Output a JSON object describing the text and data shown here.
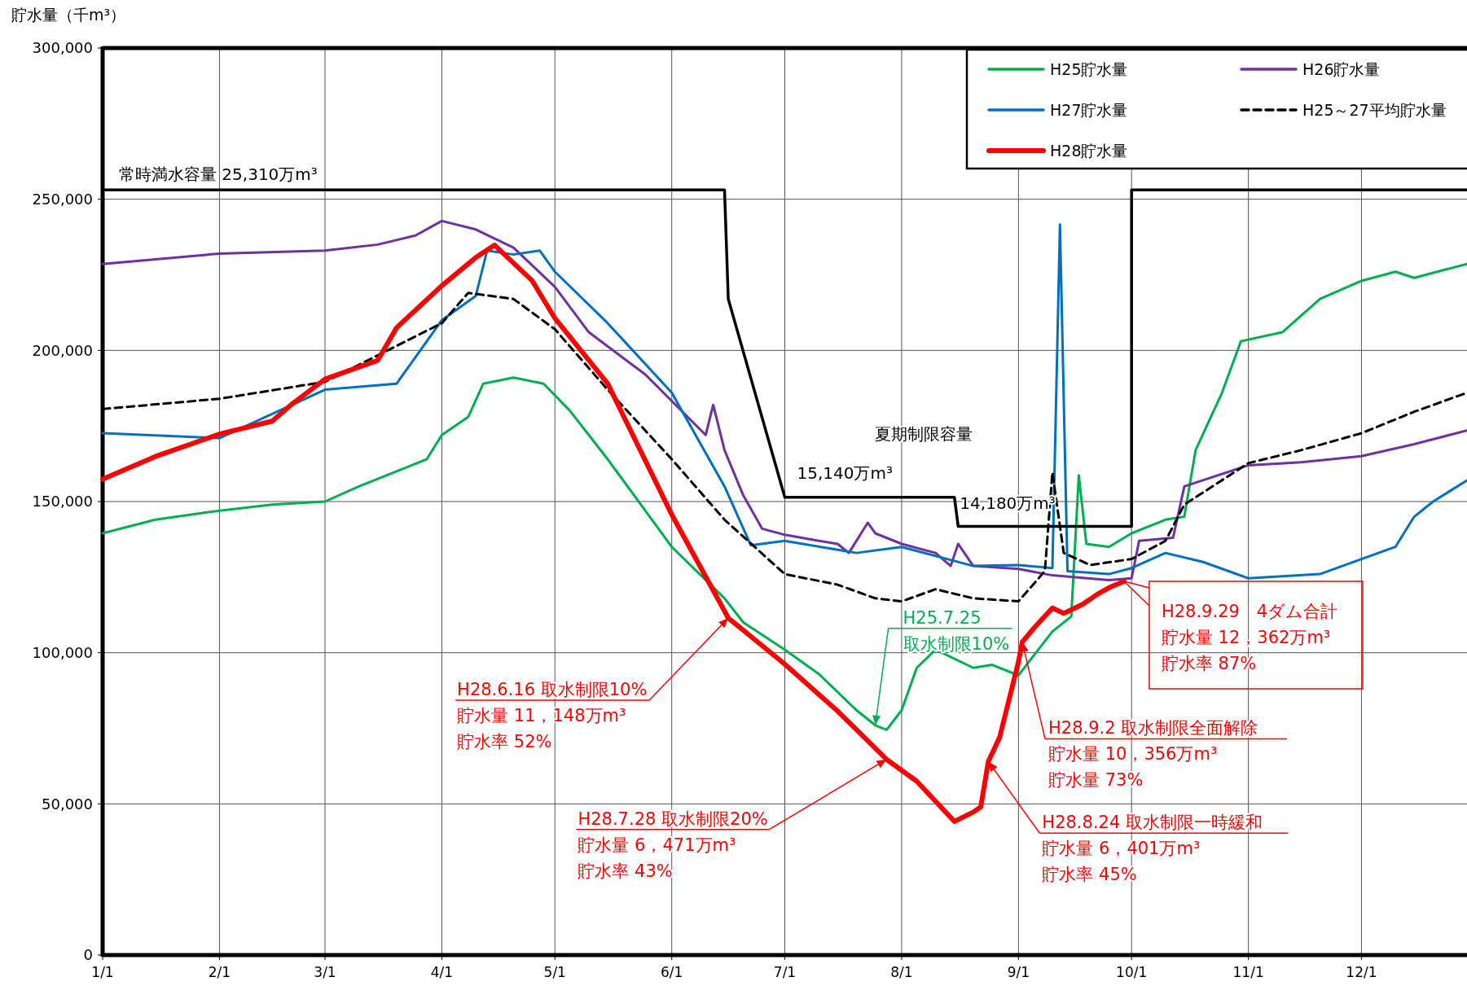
{
  "chart_data": {
    "type": "line",
    "ylabel": "貯水量（千m³）",
    "xlim": [
      "--01-01",
      "--12-29"
    ],
    "xticks": [
      {
        "value": "--01-01",
        "label": "1/1"
      },
      {
        "value": "--02-01",
        "label": "2/1"
      },
      {
        "value": "--03-01",
        "label": "3/1"
      },
      {
        "value": "--04-01",
        "label": "4/1"
      },
      {
        "value": "--05-01",
        "label": "5/1"
      },
      {
        "value": "--06-01",
        "label": "6/1"
      },
      {
        "value": "--07-01",
        "label": "7/1"
      },
      {
        "value": "--08-01",
        "label": "8/1"
      },
      {
        "value": "--09-01",
        "label": "9/1"
      },
      {
        "value": "--10-01",
        "label": "10/1"
      },
      {
        "value": "--11-01",
        "label": "11/1"
      },
      {
        "value": "--12-01",
        "label": "12/1"
      }
    ],
    "ylim": [
      0,
      300000
    ],
    "yticks": [
      {
        "value": 0,
        "label": "0"
      },
      {
        "value": 50000,
        "label": "50,000"
      },
      {
        "value": 100000,
        "label": "100,000"
      },
      {
        "value": 150000,
        "label": "150,000"
      },
      {
        "value": 200000,
        "label": "200,000"
      },
      {
        "value": 250000,
        "label": "250,000"
      },
      {
        "value": 300000,
        "label": "300,000"
      }
    ],
    "grid": true,
    "legend": "top right",
    "marker": "none",
    "series": [
      {
        "name": "H25貯水量",
        "color": "#00b050",
        "x": [
          "--01-01",
          "--01-15",
          "--02-01",
          "--02-15",
          "--03-01",
          "--03-10",
          "--03-20",
          "--03-28",
          "--04-01",
          "--04-08",
          "--04-12",
          "--04-20",
          "--04-28",
          "--05-05",
          "--05-15",
          "--06-01",
          "--06-15",
          "--06-20",
          "--07-01",
          "--07-10",
          "--07-20",
          "--07-25",
          "--07-28",
          "--08-01",
          "--08-05",
          "--08-10",
          "--08-20",
          "--08-25",
          "--09-01",
          "--09-05",
          "--09-10",
          "--09-15",
          "--09-17",
          "--09-19",
          "--09-25",
          "--10-01",
          "--10-10",
          "--10-15",
          "--10-18",
          "--10-25",
          "--10-30",
          "--11-10",
          "--11-20",
          "--12-01",
          "--12-10",
          "--12-15",
          "--12-29"
        ],
        "values": [
          139500,
          144000,
          147000,
          149000,
          150000,
          155000,
          160000,
          164000,
          172000,
          178000,
          189000,
          191000,
          189000,
          180000,
          164000,
          135000,
          118000,
          110000,
          101000,
          93000,
          81000,
          76000,
          74500,
          81000,
          95000,
          101000,
          95000,
          96000,
          92500,
          99000,
          107000,
          112000,
          158700,
          136000,
          135000,
          139500,
          144000,
          145000,
          167000,
          186000,
          203000,
          206000,
          217000,
          223000,
          226000,
          224000,
          228600
        ]
      },
      {
        "name": "H26貯水量",
        "color": "#7030a0",
        "x": [
          "--01-01",
          "--02-01",
          "--03-01",
          "--03-15",
          "--03-25",
          "--04-01",
          "--04-10",
          "--04-20",
          "--05-01",
          "--05-10",
          "--05-25",
          "--06-10",
          "--06-12",
          "--06-15",
          "--06-20",
          "--06-25",
          "--07-01",
          "--07-10",
          "--07-15",
          "--07-18",
          "--07-23",
          "--07-25",
          "--08-01",
          "--08-10",
          "--08-14",
          "--08-16",
          "--08-20",
          "--09-01",
          "--09-10",
          "--09-25",
          "--10-01",
          "--10-03",
          "--10-12",
          "--10-15",
          "--11-01",
          "--11-15",
          "--12-01",
          "--12-15",
          "--12-29"
        ],
        "values": [
          228600,
          232000,
          233000,
          235000,
          238000,
          242800,
          240000,
          234000,
          221000,
          206000,
          192000,
          172000,
          182000,
          167000,
          152000,
          141000,
          139000,
          137000,
          136000,
          133000,
          143000,
          139500,
          136000,
          133000,
          128700,
          136000,
          128700,
          127700,
          125600,
          124000,
          124600,
          137000,
          138000,
          155000,
          162000,
          163000,
          165000,
          169000,
          173500
        ]
      },
      {
        "name": "H27貯水量",
        "color": "#0070c0",
        "x": [
          "--01-01",
          "--02-01",
          "--03-01",
          "--03-20",
          "--04-01",
          "--04-10",
          "--04-13",
          "--04-20",
          "--04-27",
          "--05-01",
          "--05-15",
          "--06-01",
          "--06-15",
          "--06-22",
          "--07-01",
          "--07-20",
          "--08-01",
          "--08-20",
          "--09-01",
          "--09-10",
          "--09-12",
          "--09-14",
          "--09-25",
          "--10-01",
          "--10-10",
          "--10-20",
          "--11-01",
          "--11-20",
          "--12-01",
          "--12-10",
          "--12-15",
          "--12-20",
          "--12-29"
        ],
        "values": [
          172600,
          171000,
          187000,
          189000,
          210000,
          218000,
          233000,
          231700,
          233000,
          226000,
          209000,
          186000,
          155000,
          135500,
          137000,
          133000,
          135000,
          128700,
          129000,
          128000,
          241600,
          127000,
          126000,
          128000,
          133000,
          130000,
          124600,
          126000,
          131000,
          135000,
          145000,
          150000,
          157000
        ]
      },
      {
        "name": "H25～27平均貯水量",
        "color": "#000000",
        "line_style": "dashed",
        "x": [
          "--01-01",
          "--02-01",
          "--03-01",
          "--04-01",
          "--04-08",
          "--04-20",
          "--05-01",
          "--05-15",
          "--06-01",
          "--06-15",
          "--07-01",
          "--07-15",
          "--07-25",
          "--08-01",
          "--08-10",
          "--08-20",
          "--09-01",
          "--09-08",
          "--09-10",
          "--09-13",
          "--09-20",
          "--10-01",
          "--10-10",
          "--10-15",
          "--11-01",
          "--11-15",
          "--12-01",
          "--12-15",
          "--12-29"
        ],
        "values": [
          180600,
          184000,
          189600,
          209000,
          219000,
          217000,
          207000,
          187000,
          164000,
          144000,
          126000,
          122500,
          118000,
          117000,
          121000,
          118000,
          117000,
          127000,
          159600,
          133000,
          129000,
          131000,
          137000,
          149000,
          162700,
          167000,
          172600,
          179700,
          186000
        ]
      },
      {
        "name": "H28貯水量",
        "color": "#ff0000",
        "x": [
          "--01-01",
          "--01-15",
          "--02-01",
          "--02-15",
          "--02-20",
          "--03-01",
          "--03-15",
          "--03-20",
          "--04-01",
          "--04-10",
          "--04-15",
          "--04-25",
          "--05-01",
          "--05-15",
          "--06-01",
          "--06-16",
          "--07-01",
          "--07-15",
          "--07-28",
          "--08-05",
          "--08-15",
          "--08-20",
          "--08-22",
          "--08-24",
          "--08-27",
          "--09-01",
          "--09-02",
          "--09-05",
          "--09-10",
          "--09-13",
          "--09-18",
          "--09-22",
          "--09-25",
          "--09-29"
        ],
        "values": [
          157400,
          164900,
          172300,
          176600,
          182000,
          190500,
          196700,
          207500,
          221400,
          230700,
          234800,
          223000,
          210600,
          189000,
          145700,
          111480,
          96200,
          80700,
          64710,
          57500,
          44200,
          47300,
          49000,
          64010,
          72000,
          97000,
          103560,
          108000,
          114800,
          113000,
          116000,
          119400,
          121500,
          123620
        ]
      },
      {
        "color": "#000000",
        "x": [
          "--01-01",
          "--06-15",
          "--06-16",
          "--07-01",
          "--08-15",
          "--08-16",
          "--10-01",
          "--10-01",
          "--12-29"
        ],
        "values": [
          253100,
          253100,
          217000,
          151400,
          151400,
          141800,
          141800,
          253100,
          253100
        ]
      }
    ],
    "annotations": [
      {
        "text": "常時満水容量 25,310万m³",
        "x": "--01-01",
        "y": 253100
      },
      "夏期制限容量",
      {
        "text": "15,140万m³",
        "x": "--07-01",
        "y": 151400
      },
      {
        "text": "14,180万m³",
        "x": "--08-16",
        "y": 141800
      },
      {
        "text": "H28.6.16 取水制限10%",
        "x": "--06-16",
        "y": 111480
      },
      "貯水量 11，148万m³",
      "貯水率 52%",
      {
        "text": "H28.7.28 取水制限20%",
        "x": "--07-28",
        "y": 64710
      },
      "貯水量 6，471万m³",
      "貯水率 43%",
      {
        "text": "H28.8.24 取水制限一時緩和",
        "x": "--08-24",
        "y": 64010
      },
      "貯水量 6，401万m³",
      "貯水率 45%",
      {
        "text": "H28.9.2 取水制限全面解除",
        "x": "--09-02",
        "y": 103560
      },
      "貯水量 10，356万m³",
      "貯水量 73%",
      {
        "text": "H28.9.29　4ダム合計",
        "x": "--09-29",
        "y": 123620
      },
      "貯水量 12，362万m³",
      "貯水率 87%",
      {
        "text": "H25.7.25",
        "x": "--07-25",
        "y": 76000
      },
      "取水制限10%"
    ]
  }
}
